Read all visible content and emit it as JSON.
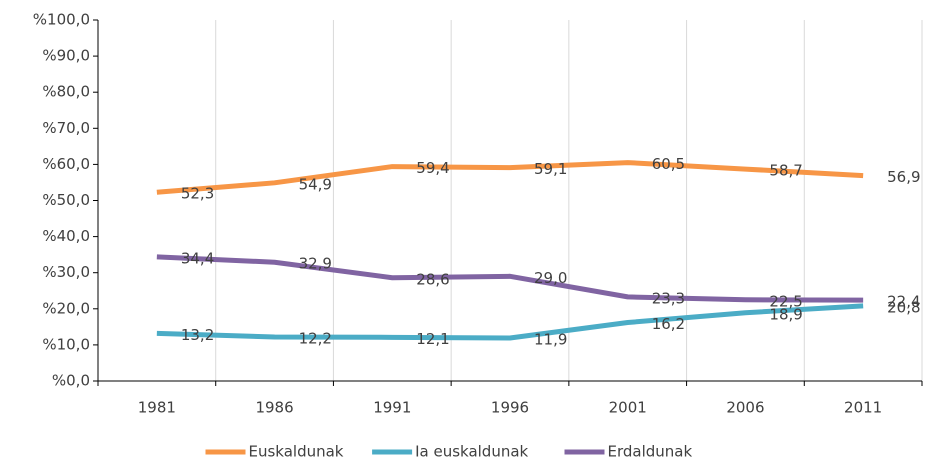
{
  "chart_data": {
    "type": "line",
    "categories": [
      "1981",
      "1986",
      "1991",
      "1996",
      "2001",
      "2006",
      "2011"
    ],
    "series": [
      {
        "name": "Euskaldunak",
        "color": "#f79646",
        "values": [
          52.3,
          54.9,
          59.4,
          59.1,
          60.5,
          58.7,
          56.9
        ],
        "value_labels": [
          "52,3",
          "54,9",
          "59,4",
          "59,1",
          "60,5",
          "58,7",
          "56,9"
        ]
      },
      {
        "name": "Ia euskaldunak",
        "color": "#4bacc6",
        "values": [
          13.2,
          12.2,
          12.1,
          11.9,
          16.2,
          18.9,
          20.8
        ],
        "value_labels": [
          "13,2",
          "12,2",
          "12,1",
          "11,9",
          "16,2",
          "18,9",
          "20,8"
        ]
      },
      {
        "name": "Erdaldunak",
        "color": "#8064a2",
        "values": [
          34.4,
          32.9,
          28.6,
          29.0,
          23.3,
          22.5,
          22.4
        ],
        "value_labels": [
          "34,4",
          "32,9",
          "28,6",
          "29,0",
          "23,3",
          "22,5",
          "22,4"
        ]
      }
    ],
    "ylim": [
      0,
      100
    ],
    "yticks": [
      {
        "value": 0,
        "label": "%0,0"
      },
      {
        "value": 10,
        "label": "%10,0"
      },
      {
        "value": 20,
        "label": "%20,0"
      },
      {
        "value": 30,
        "label": "%30,0"
      },
      {
        "value": 40,
        "label": "%40,0"
      },
      {
        "value": 50,
        "label": "%50,0"
      },
      {
        "value": 60,
        "label": "%60,0"
      },
      {
        "value": 70,
        "label": "%70,0"
      },
      {
        "value": 80,
        "label": "%80,0"
      },
      {
        "value": 90,
        "label": "%90,0"
      },
      {
        "value": 100,
        "label": "%100,0"
      }
    ],
    "grid": "vertical",
    "legend": "bottom"
  }
}
